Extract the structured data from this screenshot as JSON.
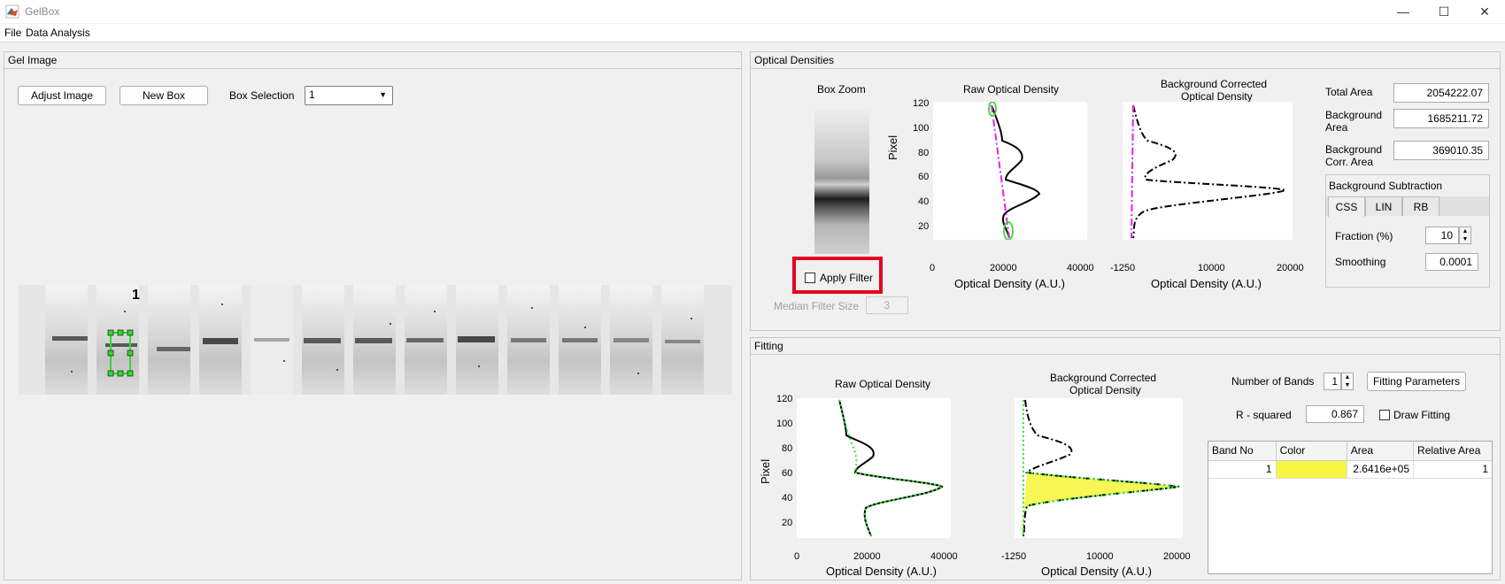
{
  "window": {
    "title": "GelBox",
    "min": "—",
    "max": "☐",
    "close": "✕"
  },
  "menu": [
    "File",
    "Data Analysis"
  ],
  "gel_panel": {
    "title": "Gel Image",
    "adjust_image": "Adjust Image",
    "new_box": "New Box",
    "box_selection_label": "Box Selection",
    "box_selection_value": "1",
    "box_label": "1"
  },
  "od_panel": {
    "title": "Optical Densities",
    "box_zoom": "Box Zoom",
    "raw_title": "Raw Optical Density",
    "bc_title_1": "Background Corrected",
    "bc_title_2": "Optical Density",
    "ylabel": "Pixel",
    "xlabel": "Optical Density (A.U.)",
    "raw_yticks": [
      "120",
      "100",
      "80",
      "60",
      "40",
      "20"
    ],
    "raw_xticks": [
      "0",
      "20000",
      "40000"
    ],
    "bc_xticks": [
      "-1250",
      "10000",
      "20000"
    ],
    "apply_filter": "Apply Filter",
    "median_filter_label": "Median Filter Size",
    "median_filter_value": "3",
    "total_area_label": "Total Area",
    "total_area": "2054222.07",
    "bg_area_label_1": "Background",
    "bg_area_label_2": "Area",
    "bg_area": "1685211.72",
    "bgc_area_label_1": "Background",
    "bgc_area_label_2": "Corr. Area",
    "bgc_area": "369010.35",
    "bg_sub_title": "Background Subtraction",
    "tabs": [
      "CSS",
      "LIN",
      "RB"
    ],
    "fraction_label": "Fraction (%)",
    "fraction": "10",
    "smoothing_label": "Smoothing",
    "smoothing": "0.0001"
  },
  "fit_panel": {
    "title": "Fitting",
    "raw_title": "Raw Optical Density",
    "bc_title_1": "Background Corrected",
    "bc_title_2": "Optical Density",
    "ylabel": "Pixel",
    "xlabel": "Optical Density (A.U.)",
    "yticks": [
      "120",
      "100",
      "80",
      "60",
      "40",
      "20"
    ],
    "raw_xticks": [
      "0",
      "20000",
      "40000"
    ],
    "bc_xticks": [
      "-1250",
      "10000",
      "20000"
    ],
    "num_bands_label": "Number of Bands",
    "num_bands": "1",
    "fitting_params": "Fitting Parameters",
    "r2_label": "R - squared",
    "r2": "0.867",
    "draw_fitting": "Draw Fitting",
    "table_headers": [
      "Band No",
      "Color",
      "Area",
      "Relative Area"
    ],
    "table_rows": [
      {
        "band": "1",
        "area": "2.6416e+05",
        "relative": "1",
        "color": "#f5f542"
      }
    ]
  }
}
